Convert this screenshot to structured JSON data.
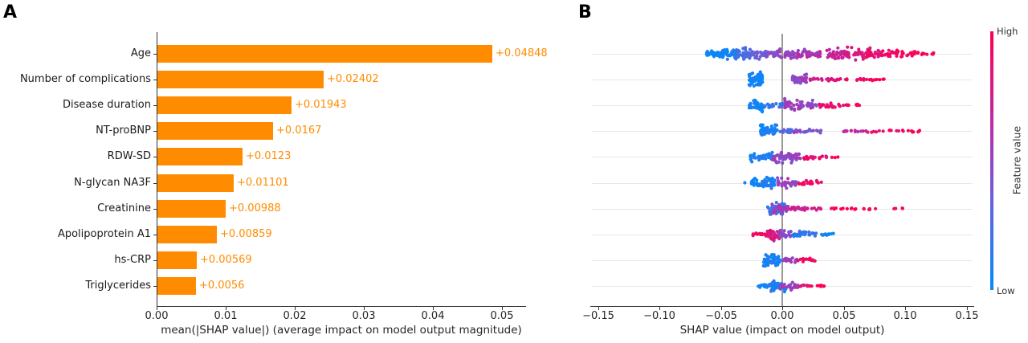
{
  "figure": {
    "panels": [
      {
        "label": "A",
        "type": "bar-chart"
      },
      {
        "label": "B",
        "type": "beeswarm"
      }
    ]
  },
  "chart_data": [
    {
      "type": "bar",
      "panel_label": "A",
      "orientation": "horizontal",
      "title": "",
      "xlabel": "mean(|SHAP value|) (average impact on model output magnitude)",
      "ylabel": "",
      "categories": [
        "Age",
        "Number of complications",
        "Disease duration",
        "NT-proBNP",
        "RDW-SD",
        "N-glycan NA3F",
        "Creatinine",
        "Apolipoprotein A1",
        "hs-CRP",
        "Triglycerides"
      ],
      "values": [
        0.04848,
        0.02402,
        0.01943,
        0.0167,
        0.0123,
        0.01101,
        0.00988,
        0.00859,
        0.00569,
        0.0056
      ],
      "value_labels": [
        "+0.04848",
        "+0.02402",
        "+0.01943",
        "+0.0167",
        "+0.0123",
        "+0.01101",
        "+0.00988",
        "+0.00859",
        "+0.00569",
        "+0.0056"
      ],
      "xlim": [
        0,
        0.0535
      ],
      "xticks": [
        0,
        0.01,
        0.02,
        0.03,
        0.04,
        0.05
      ],
      "xtick_labels": [
        "0.00",
        "0.01",
        "0.02",
        "0.03",
        "0.04",
        "0.05"
      ],
      "bar_color": "#ff8c00",
      "grid": false,
      "legend": null
    },
    {
      "type": "scatter",
      "subtype": "beeswarm",
      "panel_label": "B",
      "xlabel": "SHAP value (impact on model output)",
      "xlim": [
        -0.156,
        0.156
      ],
      "xticks": [
        -0.15,
        -0.1,
        -0.05,
        0,
        0.05,
        0.1,
        0.15
      ],
      "xtick_labels": [
        "−0.15",
        "−0.10",
        "−0.05",
        "0.00",
        "0.05",
        "0.10",
        "0.15"
      ],
      "zero_line_color": "#999999",
      "row_line_color": "#e7e7e7",
      "colormap": {
        "stops": [
          [
            0,
            "#008bfb"
          ],
          [
            0.35,
            "#6a5fd8"
          ],
          [
            0.65,
            "#bc2aa8"
          ],
          [
            1,
            "#ff0051"
          ]
        ]
      },
      "colorbar": {
        "label_high": "High",
        "label_low": "Low",
        "title": "Feature value"
      },
      "cluster_format": [
        "shap_x_min",
        "shap_x_max",
        "n_points",
        "feature_value_0to1",
        "half_height_px"
      ],
      "features": [
        {
          "name": "Age",
          "clusters": [
            [
              -0.062,
              -0.048,
              26,
              0.03,
              6
            ],
            [
              -0.05,
              -0.036,
              40,
              0.1,
              9
            ],
            [
              -0.038,
              -0.024,
              34,
              0.22,
              9
            ],
            [
              -0.026,
              -0.012,
              30,
              0.32,
              8
            ],
            [
              -0.014,
              -0.002,
              24,
              0.42,
              6
            ],
            [
              -0.004,
              0.01,
              26,
              0.5,
              7
            ],
            [
              0.008,
              0.022,
              26,
              0.57,
              8
            ],
            [
              0.02,
              0.032,
              20,
              0.62,
              6
            ],
            [
              0.036,
              0.055,
              40,
              0.72,
              10
            ],
            [
              0.05,
              0.072,
              42,
              0.8,
              10
            ],
            [
              0.068,
              0.09,
              32,
              0.88,
              8
            ],
            [
              0.086,
              0.108,
              24,
              0.94,
              6
            ],
            [
              0.104,
              0.124,
              16,
              0.99,
              4
            ]
          ]
        },
        {
          "name": "Number of complications",
          "clusters": [
            [
              -0.027,
              -0.016,
              55,
              0.04,
              11
            ],
            [
              0.008,
              0.02,
              38,
              0.5,
              9
            ],
            [
              0.022,
              0.045,
              20,
              0.8,
              3
            ],
            [
              0.045,
              0.07,
              12,
              0.92,
              2
            ],
            [
              0.07,
              0.083,
              8,
              1,
              2
            ]
          ]
        },
        {
          "name": "Disease duration",
          "clusters": [
            [
              -0.028,
              -0.016,
              40,
              0.05,
              10
            ],
            [
              -0.016,
              0.002,
              26,
              0.18,
              5
            ],
            [
              0.002,
              0.028,
              58,
              0.52,
              10
            ],
            [
              0.028,
              0.05,
              22,
              0.85,
              4
            ],
            [
              0.05,
              0.068,
              10,
              0.97,
              2
            ]
          ]
        },
        {
          "name": "NT-proBNP",
          "clusters": [
            [
              -0.018,
              -0.004,
              52,
              0.06,
              12
            ],
            [
              -0.002,
              0.008,
              16,
              0.25,
              5
            ],
            [
              0.008,
              0.032,
              22,
              0.42,
              3
            ],
            [
              0.048,
              0.075,
              14,
              0.7,
              2
            ],
            [
              0.072,
              0.1,
              12,
              0.9,
              2
            ],
            [
              0.098,
              0.116,
              7,
              1,
              2
            ]
          ]
        },
        {
          "name": "RDW-SD",
          "clusters": [
            [
              -0.026,
              -0.008,
              40,
              0.08,
              8
            ],
            [
              -0.008,
              0.016,
              52,
              0.5,
              10
            ],
            [
              0.016,
              0.038,
              22,
              0.88,
              4
            ],
            [
              0.04,
              0.046,
              3,
              1,
              1
            ]
          ]
        },
        {
          "name": "N-glycan NA3F",
          "clusters": [
            [
              -0.031,
              -0.029,
              1,
              0,
              0
            ],
            [
              -0.025,
              -0.006,
              50,
              0.07,
              10
            ],
            [
              -0.004,
              0.014,
              32,
              0.5,
              7
            ],
            [
              0.014,
              0.032,
              18,
              0.93,
              4
            ]
          ]
        },
        {
          "name": "Creatinine",
          "clusters": [
            [
              -0.012,
              0.002,
              40,
              0.18,
              11
            ],
            [
              -0.009,
              0.005,
              28,
              0.55,
              9
            ],
            [
              0.006,
              0.032,
              28,
              0.75,
              3
            ],
            [
              0.038,
              0.062,
              12,
              0.97,
              2
            ],
            [
              0.066,
              0.082,
              6,
              1,
              2
            ],
            [
              0.088,
              0.098,
              4,
              1,
              1.5
            ]
          ]
        },
        {
          "name": "Apolipoprotein A1",
          "clusters": [
            [
              -0.024,
              -0.011,
              22,
              0.93,
              3
            ],
            [
              -0.012,
              -0.001,
              38,
              0.78,
              10
            ],
            [
              -0.003,
              0.007,
              28,
              0.48,
              8
            ],
            [
              0.007,
              0.028,
              30,
              0.15,
              5
            ],
            [
              0.028,
              0.042,
              12,
              0.06,
              2
            ]
          ]
        },
        {
          "name": "hs-CRP",
          "clusters": [
            [
              -0.016,
              -0.002,
              55,
              0.06,
              11
            ],
            [
              0,
              0.012,
              20,
              0.5,
              5
            ],
            [
              0.012,
              0.027,
              12,
              0.92,
              3
            ]
          ]
        },
        {
          "name": "Triglycerides",
          "clusters": [
            [
              -0.02,
              -0.008,
              16,
              0.1,
              3
            ],
            [
              -0.01,
              0.003,
              42,
              0.1,
              9
            ],
            [
              -0.002,
              0.013,
              28,
              0.52,
              7
            ],
            [
              0.012,
              0.025,
              10,
              0.9,
              2
            ],
            [
              0.026,
              0.036,
              9,
              1,
              2
            ]
          ]
        }
      ]
    }
  ]
}
